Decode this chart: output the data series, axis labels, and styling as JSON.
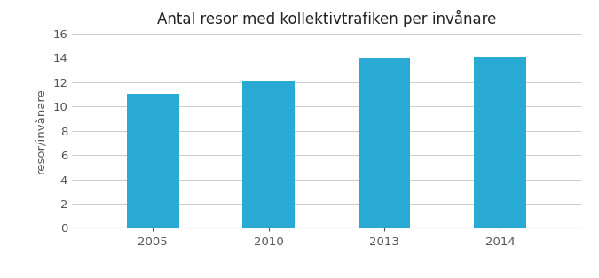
{
  "title": "Antal resor med kollektivtrafiken per invånare",
  "ylabel": "resor/invånare",
  "categories": [
    "2005",
    "2010",
    "2013",
    "2014"
  ],
  "values": [
    11.0,
    12.1,
    14.0,
    14.1
  ],
  "bar_color": "#29aad4",
  "ylim": [
    0,
    16
  ],
  "yticks": [
    0,
    2,
    4,
    6,
    8,
    10,
    12,
    14,
    16
  ],
  "background_color": "#ffffff",
  "title_fontsize": 12,
  "label_fontsize": 9.5,
  "tick_fontsize": 9.5,
  "bar_width": 0.45,
  "figwidth": 6.75,
  "figheight": 3.14,
  "dpi": 100
}
